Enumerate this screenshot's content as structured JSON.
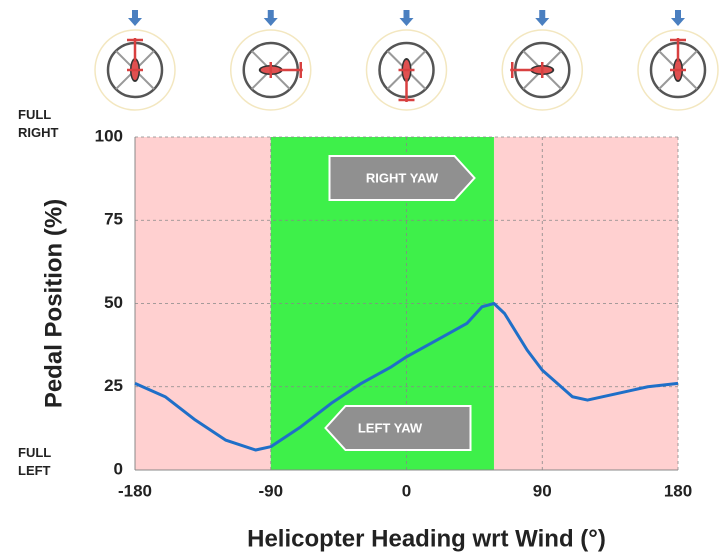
{
  "chart_data": {
    "type": "line",
    "x_label": "Helicopter Heading wrt Wind (°)",
    "y_label": "Pedal Position (%)",
    "x": [
      -180,
      -160,
      -140,
      -120,
      -100,
      -90,
      -70,
      -50,
      -30,
      -10,
      0,
      20,
      40,
      50,
      58,
      65,
      80,
      90,
      110,
      120,
      140,
      160,
      180
    ],
    "values": [
      26,
      22,
      15,
      9,
      6,
      7,
      13,
      20,
      26,
      31,
      34,
      39,
      44,
      49,
      50,
      47,
      36,
      30,
      22,
      21,
      23,
      25,
      26
    ],
    "color": "#1f6fc8",
    "xlim": [
      -180,
      180
    ],
    "ylim": [
      0,
      100
    ],
    "xticks": [
      -180,
      -90,
      0,
      90,
      180
    ],
    "yticks": [
      0,
      25,
      50,
      75,
      100
    ],
    "grid": true,
    "shaded_regions": [
      {
        "from": -180,
        "to": -90,
        "color": "#ffd0d0"
      },
      {
        "from": -90,
        "to": 58,
        "color": "#3ef04a"
      },
      {
        "from": 58,
        "to": 180,
        "color": "#ffd0d0"
      }
    ],
    "y_end_labels": [
      "FULL RIGHT",
      "FULL LEFT"
    ],
    "annotations": [
      "RIGHT YAW",
      "LEFT YAW"
    ]
  }
}
